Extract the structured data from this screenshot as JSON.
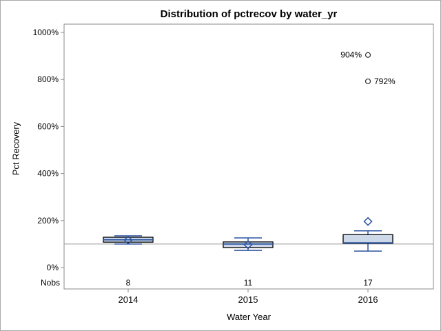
{
  "title": "Distribution of pctrecov by water_yr",
  "y_axis": {
    "label": "Pct Recovery"
  },
  "x_axis": {
    "label": "Water Year"
  },
  "nobs_header": "Nobs",
  "colors": {
    "box_fill": "#cdd8e8",
    "box_stroke": "#000000",
    "whisker": "#2a52a0",
    "median": "#2a52a0",
    "mean_marker": "#2a52a0",
    "outlier": "#303030",
    "reference_line": "#9b9b9b",
    "frame": "#8a8a8a",
    "text": "#000000"
  },
  "chart_data": {
    "type": "boxplot",
    "title": "Distribution of pctrecov by water_yr",
    "xlabel": "Water Year",
    "ylabel": "Pct Recovery",
    "categories": [
      "2014",
      "2015",
      "2016"
    ],
    "nobs": [
      8,
      11,
      17
    ],
    "yticks": [
      0,
      200,
      400,
      600,
      800,
      1000
    ],
    "ytick_suffix": "%",
    "ylim": [
      0,
      1000
    ],
    "grid": false,
    "legend": false,
    "reference_line": 100,
    "series": [
      {
        "category": "2014",
        "n": 8,
        "whisker_low": 100,
        "q1": 108,
        "median": 118,
        "mean": 117,
        "q3": 129,
        "whisker_high": 135,
        "outliers": []
      },
      {
        "category": "2015",
        "n": 11,
        "whisker_low": 73,
        "q1": 85,
        "median": 100,
        "mean": 97,
        "q3": 109,
        "whisker_high": 126,
        "outliers": []
      },
      {
        "category": "2016",
        "n": 17,
        "whisker_low": 70,
        "q1": 103,
        "median": 105,
        "mean": 196,
        "q3": 140,
        "whisker_high": 156,
        "outliers": [
          {
            "value": 904,
            "label": "904%",
            "label_side": "left"
          },
          {
            "value": 792,
            "label": "792%",
            "label_side": "right"
          }
        ]
      }
    ]
  }
}
